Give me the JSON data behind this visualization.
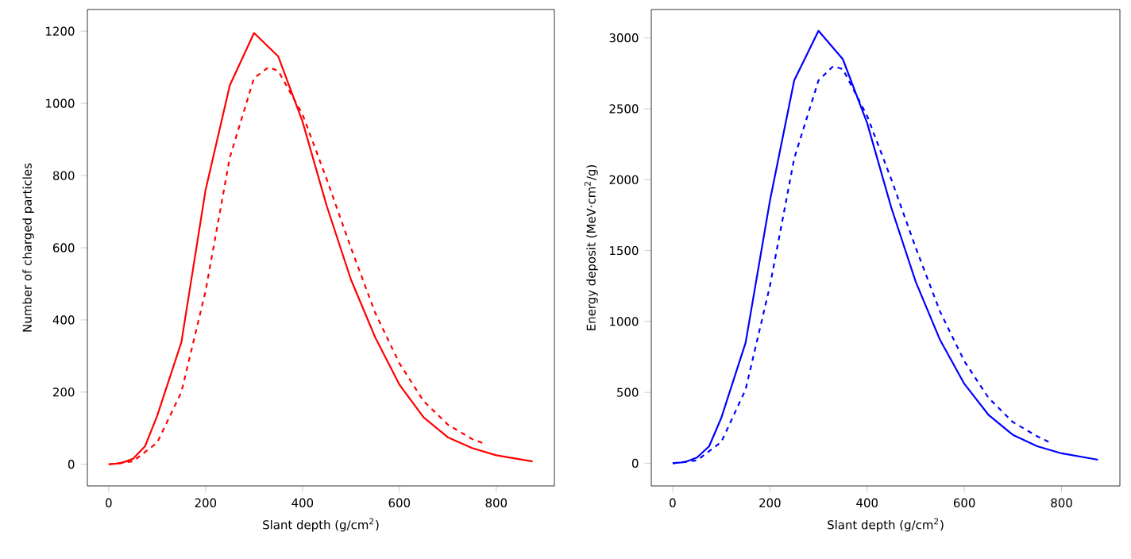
{
  "chart_data": [
    {
      "type": "line",
      "xlabel": "Slant depth (g/cm$^{2}$)",
      "ylabel": "Number of charged particles",
      "xlim": [
        -44,
        920
      ],
      "ylim": [
        -60,
        1260
      ],
      "xticks": [
        0,
        200,
        400,
        600,
        800
      ],
      "yticks": [
        0,
        200,
        400,
        600,
        800,
        1000,
        1200
      ],
      "series": [
        {
          "color": "#ff0000",
          "line_style": "solid",
          "x": [
            0,
            25,
            50,
            75,
            100,
            150,
            200,
            250,
            300,
            350,
            400,
            450,
            500,
            550,
            600,
            650,
            700,
            750,
            800,
            875
          ],
          "values": [
            0,
            3,
            15,
            50,
            134,
            338,
            760,
            1050,
            1195,
            1130,
            950,
            716,
            512,
            352,
            221,
            130,
            75,
            45,
            25,
            8
          ]
        },
        {
          "color": "#ff0000",
          "line_style": "dashed",
          "x": [
            0,
            50,
            100,
            150,
            200,
            250,
            300,
            330,
            350,
            400,
            450,
            500,
            550,
            600,
            650,
            700,
            750,
            780
          ],
          "values": [
            0,
            8,
            60,
            200,
            480,
            850,
            1070,
            1100,
            1090,
            970,
            790,
            600,
            420,
            280,
            175,
            110,
            70,
            55
          ]
        }
      ]
    },
    {
      "type": "line",
      "xlabel": "Slant depth (g/cm$^{2}$)",
      "ylabel": "Energy deposit (MeV·cm$^{2}$/g)",
      "xlim": [
        -44,
        920
      ],
      "ylim": [
        -160,
        3200
      ],
      "xticks": [
        0,
        200,
        400,
        600,
        800
      ],
      "yticks": [
        0,
        500,
        1000,
        1500,
        2000,
        2500,
        3000
      ],
      "series": [
        {
          "color": "#0000ff",
          "line_style": "solid",
          "x": [
            0,
            25,
            50,
            75,
            100,
            150,
            200,
            250,
            300,
            350,
            400,
            450,
            500,
            550,
            600,
            650,
            700,
            750,
            800,
            875
          ],
          "values": [
            0,
            8,
            40,
            120,
            320,
            850,
            1850,
            2700,
            3050,
            2850,
            2400,
            1800,
            1280,
            870,
            560,
            340,
            200,
            120,
            70,
            25
          ]
        },
        {
          "color": "#0000ff",
          "line_style": "dashed",
          "x": [
            0,
            50,
            100,
            150,
            200,
            250,
            300,
            330,
            350,
            400,
            450,
            500,
            550,
            600,
            650,
            700,
            750,
            780
          ],
          "values": [
            0,
            20,
            150,
            520,
            1250,
            2150,
            2700,
            2800,
            2780,
            2450,
            2000,
            1520,
            1070,
            720,
            460,
            290,
            190,
            140
          ]
        }
      ]
    }
  ]
}
